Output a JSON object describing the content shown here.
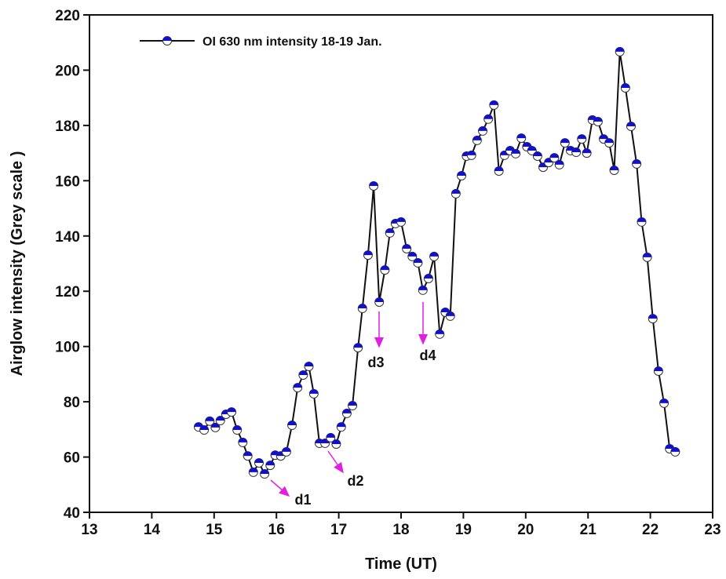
{
  "chart_data": {
    "type": "line",
    "xlabel": "Time  (UT)",
    "ylabel": "Airglow intensity (Grey scale )",
    "x": [
      14.75,
      14.84,
      14.93,
      15.02,
      15.1,
      15.19,
      15.28,
      15.37,
      15.46,
      15.54,
      15.63,
      15.72,
      15.81,
      15.9,
      15.98,
      16.07,
      16.16,
      16.25,
      16.34,
      16.43,
      16.52,
      16.6,
      16.69,
      16.78,
      16.87,
      16.96,
      17.04,
      17.13,
      17.22,
      17.31,
      17.38,
      17.47,
      17.56,
      17.65,
      17.74,
      17.82,
      17.91,
      18.0,
      18.09,
      18.18,
      18.27,
      18.35,
      18.44,
      18.53,
      18.62,
      18.71,
      18.79,
      18.88,
      18.97,
      19.05,
      19.13,
      19.22,
      19.31,
      19.4,
      19.49,
      19.57,
      19.66,
      19.75,
      19.84,
      19.93,
      20.02,
      20.1,
      20.19,
      20.28,
      20.37,
      20.46,
      20.54,
      20.63,
      20.72,
      20.81,
      20.9,
      20.98,
      21.07,
      21.16,
      21.25,
      21.34,
      21.42,
      21.51,
      21.6,
      21.69,
      21.78,
      21.86,
      21.95,
      22.04,
      22.13,
      22.22,
      22.31,
      22.4
    ],
    "series": [
      {
        "name": "OI 630 nm intensity 18-19 Jan.",
        "color": "#1010d0",
        "values": [
          70.9,
          69.8,
          73,
          70.7,
          73.2,
          75.5,
          76.3,
          69.8,
          65.3,
          60.4,
          54.5,
          57.9,
          53.9,
          57,
          60.7,
          60.4,
          61.9,
          71.5,
          85.1,
          89.7,
          92.8,
          82.9,
          65,
          65,
          67,
          64.7,
          70.9,
          75.8,
          78.6,
          99.6,
          113.8,
          133.1,
          158.1,
          116.1,
          127.7,
          141.1,
          144.5,
          145.1,
          135.4,
          132.6,
          130.3,
          120.4,
          124.6,
          132.6,
          104.5,
          112.4,
          111,
          155.3,
          161.8,
          168.9,
          169.2,
          174.6,
          178,
          182.3,
          187.4,
          163.5,
          169.2,
          170.9,
          169.8,
          175.4,
          172.3,
          170.9,
          168.9,
          164.9,
          166.6,
          168.3,
          165.8,
          173.7,
          170.9,
          170.3,
          175.1,
          170,
          182,
          181.4,
          175.1,
          173.7,
          163.8,
          206.7,
          193.6,
          179.7,
          166.1,
          145.1,
          132.3,
          110.1,
          91.1,
          79.5,
          63,
          61.9
        ]
      }
    ],
    "xlim": [
      13,
      23
    ],
    "xticks": [
      13,
      14,
      15,
      16,
      17,
      18,
      19,
      20,
      21,
      22,
      23
    ],
    "ylim": [
      40,
      220
    ],
    "yticks": [
      40,
      60,
      80,
      100,
      120,
      140,
      160,
      180,
      200,
      220
    ],
    "annotations": [
      "d1",
      "d2",
      "d3",
      "d4"
    ],
    "annotation_color": "#e020e0",
    "legend": "upper left",
    "grid": false
  }
}
